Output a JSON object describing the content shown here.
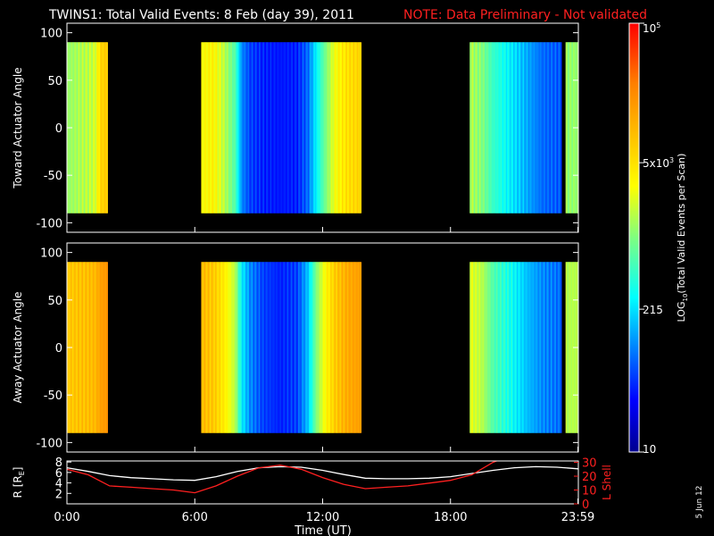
{
  "header": {
    "title": "TWINS1: Total Valid Events:  8 Feb (day  39), 2011",
    "note": "NOTE: Data Preliminary - Not validated",
    "note_color": "#ff2020"
  },
  "side_date": "5 Jun 12",
  "colorbar": {
    "label_main": "LOG",
    "label_sub": "10",
    "label_rest": "(Total Valid Events per Scan)",
    "ticks": [
      {
        "base": "10",
        "exp": "5",
        "value": 100000
      },
      {
        "base": "5x10",
        "exp": "3",
        "value": 5000
      },
      {
        "base": "215",
        "exp": "",
        "value": 215
      },
      {
        "base": "10",
        "exp": "",
        "value": 10
      }
    ],
    "range": [
      10,
      100000
    ],
    "scale": "log"
  },
  "chart_data": [
    {
      "type": "heatmap",
      "ylabel": "Toward Actuator Angle",
      "ylim": [
        -110,
        110
      ],
      "yticks": [
        "100",
        "50",
        "0",
        "-50",
        "-100"
      ],
      "x_range_hours": [
        0,
        24
      ],
      "data_angle_range": [
        -90,
        90
      ],
      "segments": [
        {
          "start_h": 0.0,
          "end_h": 1.9,
          "profile": [
            [
              0.0,
              0.52
            ],
            [
              1.3,
              0.57
            ],
            [
              1.6,
              0.7
            ],
            [
              1.9,
              0.72
            ]
          ]
        },
        {
          "start_h": 6.3,
          "end_h": 13.8,
          "profile": [
            [
              6.3,
              0.62
            ],
            [
              6.9,
              0.64
            ],
            [
              7.4,
              0.55
            ],
            [
              7.9,
              0.45
            ],
            [
              8.2,
              0.25
            ],
            [
              8.6,
              0.18
            ],
            [
              9.2,
              0.15
            ],
            [
              10.0,
              0.14
            ],
            [
              10.8,
              0.15
            ],
            [
              11.3,
              0.22
            ],
            [
              11.7,
              0.35
            ],
            [
              12.1,
              0.48
            ],
            [
              12.6,
              0.62
            ],
            [
              13.2,
              0.68
            ],
            [
              13.8,
              0.7
            ]
          ]
        },
        {
          "start_h": 18.9,
          "end_h": 23.2,
          "profile": [
            [
              18.9,
              0.55
            ],
            [
              19.5,
              0.5
            ],
            [
              20.0,
              0.42
            ],
            [
              20.8,
              0.35
            ],
            [
              21.6,
              0.28
            ],
            [
              22.3,
              0.22
            ],
            [
              23.2,
              0.2
            ]
          ]
        },
        {
          "start_h": 23.4,
          "end_h": 24.0,
          "profile": [
            [
              23.4,
              0.52
            ],
            [
              24.0,
              0.52
            ]
          ]
        }
      ]
    },
    {
      "type": "heatmap",
      "ylabel": "Away Actuator Angle",
      "ylim": [
        -110,
        110
      ],
      "yticks": [
        "100",
        "50",
        "0",
        "-50",
        "-100"
      ],
      "x_range_hours": [
        0,
        24
      ],
      "data_angle_range": [
        -90,
        90
      ],
      "segments": [
        {
          "start_h": 0.0,
          "end_h": 1.9,
          "profile": [
            [
              0.0,
              0.72
            ],
            [
              1.3,
              0.75
            ],
            [
              1.6,
              0.8
            ],
            [
              1.9,
              0.82
            ]
          ]
        },
        {
          "start_h": 6.3,
          "end_h": 13.8,
          "profile": [
            [
              6.3,
              0.75
            ],
            [
              6.9,
              0.72
            ],
            [
              7.4,
              0.65
            ],
            [
              7.9,
              0.55
            ],
            [
              8.2,
              0.35
            ],
            [
              8.6,
              0.25
            ],
            [
              9.2,
              0.18
            ],
            [
              10.0,
              0.15
            ],
            [
              10.8,
              0.18
            ],
            [
              11.3,
              0.3
            ],
            [
              11.7,
              0.5
            ],
            [
              12.1,
              0.62
            ],
            [
              12.6,
              0.72
            ],
            [
              13.2,
              0.78
            ],
            [
              13.8,
              0.8
            ]
          ]
        },
        {
          "start_h": 18.9,
          "end_h": 23.2,
          "profile": [
            [
              18.9,
              0.6
            ],
            [
              19.5,
              0.55
            ],
            [
              20.0,
              0.45
            ],
            [
              20.8,
              0.38
            ],
            [
              21.6,
              0.3
            ],
            [
              22.3,
              0.25
            ],
            [
              23.2,
              0.22
            ]
          ]
        },
        {
          "start_h": 23.4,
          "end_h": 24.0,
          "profile": [
            [
              23.4,
              0.55
            ],
            [
              24.0,
              0.55
            ]
          ]
        }
      ]
    },
    {
      "type": "line",
      "xlabel": "Time (UT)",
      "x_tick_labels": [
        "0:00",
        "6:00",
        "12:00",
        "18:00",
        "23:59"
      ],
      "x_tick_hours": [
        0,
        6,
        12,
        18,
        23.98
      ],
      "left_axis": {
        "label_main": "R [R",
        "label_sub": "E",
        "label_end": "]",
        "ticks": [
          "8",
          "6",
          "4",
          "2"
        ],
        "ylim": [
          0,
          8.2
        ]
      },
      "right_axis": {
        "label": "L Shell",
        "ticks": [
          "30",
          "20",
          "10",
          "0"
        ],
        "ylim": [
          0,
          31
        ],
        "color": "#ff2020"
      },
      "series": [
        {
          "axis": "left",
          "color": "#ffffff",
          "x": [
            0,
            1,
            2,
            3,
            4,
            5,
            6,
            7,
            8,
            9,
            10,
            11,
            12,
            13,
            14,
            15,
            16,
            17,
            18,
            19,
            20,
            21,
            22,
            23,
            24
          ],
          "y": [
            6.9,
            6.2,
            5.4,
            5.0,
            4.8,
            4.6,
            4.5,
            5.2,
            6.2,
            6.9,
            7.1,
            7.0,
            6.4,
            5.6,
            4.9,
            4.8,
            4.8,
            4.9,
            5.2,
            5.8,
            6.4,
            6.9,
            7.1,
            7.0,
            6.7
          ]
        },
        {
          "axis": "right",
          "color": "#ff2020",
          "x": [
            0,
            1,
            2,
            3,
            4,
            5,
            6,
            7,
            8,
            9,
            10,
            11,
            12,
            13,
            14,
            15,
            16,
            17,
            18,
            19,
            20,
            21
          ],
          "y": [
            25,
            21,
            13,
            12,
            11,
            10,
            8,
            13,
            20,
            26,
            28,
            25,
            19,
            14,
            11,
            12,
            13,
            15,
            17,
            21,
            30,
            36
          ]
        }
      ]
    }
  ]
}
